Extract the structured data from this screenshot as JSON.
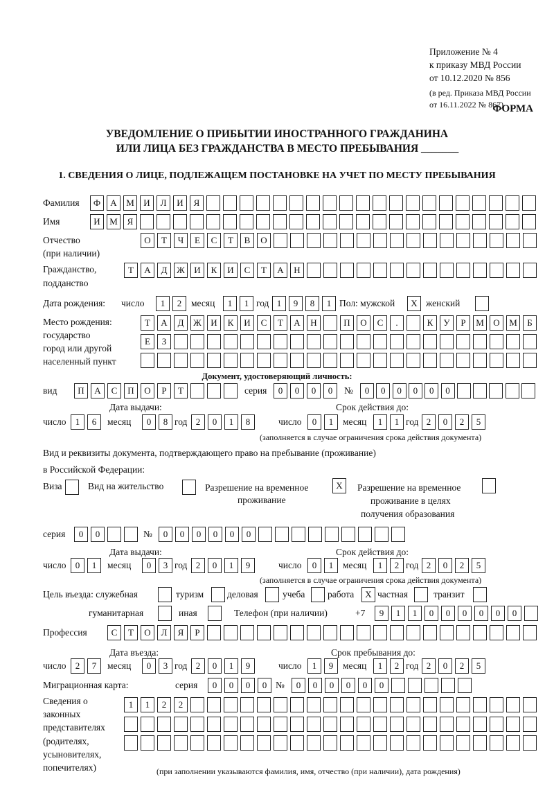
{
  "header": {
    "appendix": "Приложение № 4",
    "order": "к приказу МВД России",
    "order_date": "от 10.12.2020 № 856",
    "edition_1": "(в ред. Приказа МВД России",
    "edition_2": "от 16.11.2022 № 867)",
    "form_label": "ФОРМА",
    "title_1": "УВЕДОМЛЕНИЕ О ПРИБЫТИИ ИНОСТРАННОГО ГРАЖДАНИНА",
    "title_2": "ИЛИ ЛИЦА БЕЗ ГРАЖДАНСТВА В МЕСТО ПРЕБЫВАНИЯ _______",
    "section_1": "1. СВЕДЕНИЯ О ЛИЦЕ, ПОДЛЕЖАЩЕМ ПОСТАНОВКЕ НА УЧЕТ ПО МЕСТУ ПРЕБЫВАНИЯ"
  },
  "person": {
    "surname_label": "Фамилия",
    "surname": "ФАМИЛИЯ",
    "name_label": "Имя",
    "name": "ИМЯ",
    "patronymic_label_1": "Отчество",
    "patronymic_label_2": "(при наличии)",
    "patronymic": "ОТЧЕСТВО",
    "citizenship_label_1": "Гражданство,",
    "citizenship_label_2": "подданство",
    "citizenship": "ТАДЖИКИСТАН",
    "birth_label": "Дата рождения:",
    "day_label": "число",
    "month_label": "месяц",
    "year_label": "год",
    "birth_day": "12",
    "birth_month": "11",
    "birth_year": "1981",
    "sex_label": "Пол: мужской",
    "female_label": "женский",
    "male_mark": "X",
    "female_mark": "",
    "birthplace_label_1": "Место рождения:",
    "birthplace_label_2": "государство",
    "birthplace_label_3": "город или другой",
    "birthplace_label_4": "населенный пункт",
    "birthplace_rows": [
      "ТАДЖИКИСТАН ПОС. КУРМОМБ",
      "ЕЗ",
      ""
    ]
  },
  "id_document": {
    "heading": "Документ, удостоверяющий личность:",
    "type_label": "вид",
    "type": "ПАСПОРТ",
    "series_label": "серия",
    "series": "0000",
    "number_label": "№",
    "number": "000000",
    "issue_label": "Дата выдачи:",
    "valid_label": "Срок действия до:",
    "issue_day": "16",
    "issue_month": "08",
    "issue_year": "2018",
    "valid_day": "01",
    "valid_month": "11",
    "valid_year": "2025",
    "note": "(заполняется в случае ограничения срока действия документа)"
  },
  "stay_document": {
    "heading_1": "Вид и реквизиты документа, подтверждающего право на пребывание (проживание)",
    "heading_2": "в Российской Федерации:",
    "visa_label": "Виза",
    "visa_mark": "",
    "residence_label": "Вид на жительство",
    "residence_mark": "",
    "temp_label_1": "Разрешение на временное",
    "temp_label_2": "проживание",
    "temp_mark": "X",
    "edu_label_1": "Разрешение на временное",
    "edu_label_2": "проживание в целях",
    "edu_label_3": "получения образования",
    "edu_mark": "",
    "series_label": "серия",
    "series": "00",
    "number_label": "№",
    "number": "000000",
    "issue_label": "Дата выдачи:",
    "valid_label": "Срок действия до:",
    "issue_day": "01",
    "issue_month": "03",
    "issue_year": "2019",
    "valid_day": "01",
    "valid_month": "12",
    "valid_year": "2025",
    "note": "(заполняется в случае ограничения срока действия документа)"
  },
  "purpose": {
    "label": "Цель въезда: служебная",
    "options": [
      {
        "label": "Цель въезда: служебная",
        "mark": ""
      },
      {
        "label": "туризм",
        "mark": ""
      },
      {
        "label": "деловая",
        "mark": ""
      },
      {
        "label": "учеба",
        "mark": ""
      },
      {
        "label": "работа",
        "mark": "X"
      },
      {
        "label": "частная",
        "mark": ""
      },
      {
        "label": "транзит",
        "mark": ""
      },
      {
        "label": "гуманитарная",
        "mark": ""
      },
      {
        "label": "иная",
        "mark": ""
      }
    ],
    "phone_label": "Телефон (при наличии)",
    "phone_prefix": "+7",
    "phone": "911000000"
  },
  "profession": {
    "label": "Профессия",
    "value": "СТОЛЯР"
  },
  "entry": {
    "entry_label": "Дата въезда:",
    "stay_label": "Срок пребывания до:",
    "entry_day": "27",
    "entry_month": "03",
    "entry_year": "2019",
    "stay_day": "19",
    "stay_month": "12",
    "stay_year": "2025"
  },
  "migration_card": {
    "label": "Миграционная карта:",
    "series_label": "серия",
    "series": "0000",
    "number_label": "№",
    "number": "000000"
  },
  "representatives": {
    "label_lines": [
      "Сведения о",
      "законных",
      "представителях",
      "(родителях,",
      "усыновителях,",
      "попечителях)"
    ],
    "rows": [
      "1122",
      "",
      ""
    ],
    "note": "(при заполнении указываются фамилия, имя, отчество (при наличии), дата рождения)"
  }
}
